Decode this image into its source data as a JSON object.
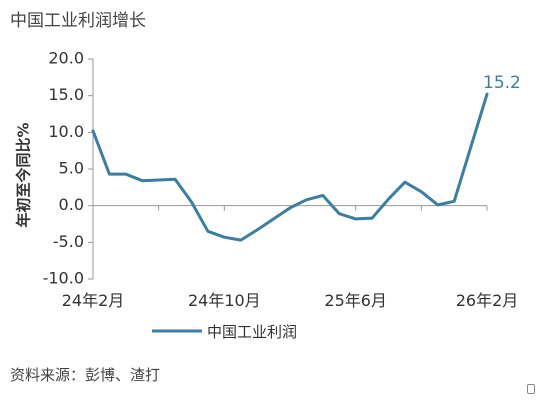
{
  "header": {
    "title": "中国工业利润增长"
  },
  "footer": {
    "source": "资料来源：彭博、渣打"
  },
  "colors": {
    "series": "#3b7ea1",
    "axis": "#999999",
    "text": "#333333"
  },
  "chart_data": {
    "type": "line",
    "title": "中国工业利润增长",
    "ylabel": "年初至今同比%",
    "xlabel": "",
    "ylim": [
      -10,
      20
    ],
    "yticks": [
      -10,
      -5,
      0,
      5,
      10,
      15,
      20
    ],
    "ytick_labels": [
      "-10.0",
      "-5.0",
      "0.0",
      "5.0",
      "10.0",
      "15.0",
      "20.0"
    ],
    "x": [
      "2024-02",
      "2024-03",
      "2024-04",
      "2024-05",
      "2024-06",
      "2024-07",
      "2024-08",
      "2024-09",
      "2024-10",
      "2024-11",
      "2024-12",
      "2025-01",
      "2025-02",
      "2025-03",
      "2025-04",
      "2025-05",
      "2025-06",
      "2025-07",
      "2025-08",
      "2025-09",
      "2025-10",
      "2025-11",
      "2025-12",
      "2026-01",
      "2026-02"
    ],
    "xtick_labels": [
      {
        "x": "2024-02",
        "label": "24年2月"
      },
      {
        "x": "2024-10",
        "label": "24年10月"
      },
      {
        "x": "2025-06",
        "label": "25年6月"
      },
      {
        "x": "2026-02",
        "label": "26年2月"
      }
    ],
    "series": [
      {
        "name": "中国工业利润",
        "values": [
          10.2,
          4.3,
          4.3,
          3.4,
          3.5,
          3.6,
          0.5,
          -3.5,
          -4.3,
          -4.7,
          -3.3,
          null,
          -0.3,
          0.8,
          1.4,
          -1.1,
          -1.8,
          -1.7,
          0.9,
          3.2,
          1.9,
          0.1,
          0.6,
          null,
          15.2
        ]
      }
    ],
    "data_labels": [
      {
        "x": "2026-02",
        "text": "15.2"
      }
    ],
    "legend": {
      "position": "bottom"
    },
    "grid": false
  }
}
